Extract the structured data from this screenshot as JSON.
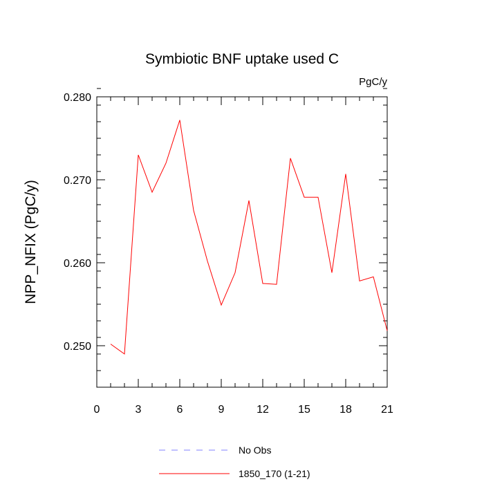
{
  "chart_data": {
    "type": "line",
    "title": "Symbiotic BNF uptake used C",
    "units_label": "PgC/y",
    "ylabel": "NPP_NFIX  (PgC/y)",
    "xlabel": "",
    "xlim": [
      0,
      21
    ],
    "ylim": [
      0.245,
      0.28
    ],
    "x_ticks": [
      0,
      3,
      6,
      9,
      12,
      15,
      18,
      21
    ],
    "x_tick_labels": [
      "0",
      "3",
      "6",
      "9",
      "12",
      "15",
      "18",
      "21"
    ],
    "y_ticks": [
      0.25,
      0.26,
      0.27,
      0.28
    ],
    "y_tick_labels": [
      "0.250",
      "0.260",
      "0.270",
      "0.280"
    ],
    "x_minor_step": 1,
    "y_minor_step": 0.002,
    "grid": false,
    "legend_position": "bottom",
    "legend": [
      {
        "label": "No Obs",
        "color": "#8080ff",
        "style": "dashed"
      },
      {
        "label": "1850_170 (1-21)",
        "color": "#ff0000",
        "style": "solid"
      }
    ],
    "series": [
      {
        "name": "1850_170 (1-21)",
        "color": "#ff0000",
        "x": [
          1,
          2,
          3,
          4,
          5,
          6,
          7,
          8,
          9,
          10,
          11,
          12,
          13,
          14,
          15,
          16,
          17,
          18,
          19,
          20,
          21
        ],
        "values": [
          0.2502,
          0.249,
          0.273,
          0.2685,
          0.272,
          0.2772,
          0.2663,
          0.2602,
          0.2549,
          0.2588,
          0.2675,
          0.2575,
          0.2574,
          0.2726,
          0.2679,
          0.2679,
          0.2588,
          0.2707,
          0.2578,
          0.2583,
          0.2518
        ]
      }
    ]
  }
}
